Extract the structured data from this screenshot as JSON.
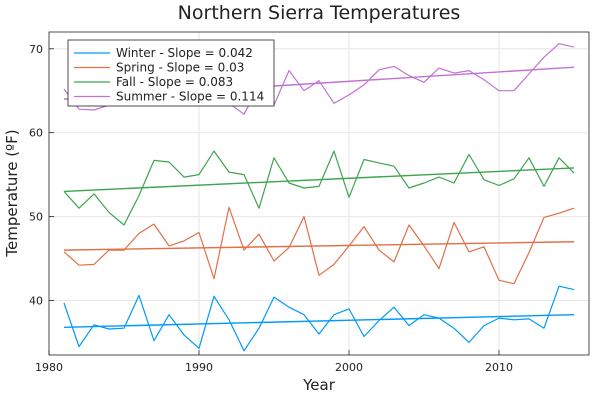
{
  "chart_data": {
    "type": "line",
    "title": "Northern Sierra Temperatures",
    "xlabel": "Year",
    "ylabel": "Temperature (ºF)",
    "xlim": [
      1980,
      2016
    ],
    "ylim": [
      33.5,
      72
    ],
    "xticks": [
      1980,
      1990,
      2000,
      2010
    ],
    "yticks": [
      40,
      50,
      60,
      70
    ],
    "grid": true,
    "legend_position": "top-left",
    "x": [
      1981,
      1982,
      1983,
      1984,
      1985,
      1986,
      1987,
      1988,
      1989,
      1990,
      1991,
      1992,
      1993,
      1994,
      1995,
      1996,
      1997,
      1998,
      1999,
      2000,
      2001,
      2002,
      2003,
      2004,
      2005,
      2006,
      2007,
      2008,
      2009,
      2010,
      2011,
      2012,
      2013,
      2014,
      2015
    ],
    "series": [
      {
        "name": "Winter - Slope = 0.042",
        "color": "#009af9",
        "values": [
          39.7,
          34.5,
          37.1,
          36.6,
          36.7,
          40.6,
          35.2,
          38.3,
          35.9,
          34.3,
          40.5,
          37.7,
          34.0,
          36.7,
          40.4,
          39.2,
          38.3,
          36.0,
          38.3,
          39.0,
          35.7,
          37.6,
          39.2,
          37.0,
          38.3,
          37.9,
          36.7,
          35.0,
          37.0,
          37.9,
          37.7,
          37.8,
          36.7,
          41.7,
          41.3
        ],
        "trend": [
          36.8,
          38.3
        ]
      },
      {
        "name": "Spring - Slope = 0.03",
        "color": "#e26f46",
        "values": [
          45.8,
          44.2,
          44.3,
          46.0,
          46.0,
          48.0,
          49.1,
          46.5,
          47.1,
          48.1,
          42.6,
          51.1,
          46.0,
          47.9,
          44.7,
          46.3,
          50.0,
          43.0,
          44.3,
          46.5,
          48.8,
          46.0,
          44.6,
          49.0,
          46.5,
          43.8,
          49.3,
          45.8,
          46.4,
          42.4,
          42.0,
          45.7,
          49.9,
          50.4,
          51.0
        ],
        "trend": [
          46.0,
          47.0
        ]
      },
      {
        "name": "Fall - Slope = 0.083",
        "color": "#3da44d",
        "values": [
          53.0,
          51.0,
          52.7,
          50.5,
          49.0,
          52.5,
          56.7,
          56.5,
          54.7,
          55.0,
          57.8,
          55.3,
          55.0,
          51.0,
          57.0,
          54.0,
          53.4,
          53.6,
          57.8,
          52.3,
          56.8,
          56.4,
          56.0,
          53.4,
          54.0,
          54.7,
          54.0,
          57.4,
          54.4,
          53.7,
          54.5,
          57.0,
          53.6,
          57.0,
          55.2
        ],
        "trend": [
          53.0,
          55.8
        ]
      },
      {
        "name": "Summer - Slope = 0.114",
        "color": "#c271d2",
        "values": [
          65.2,
          62.8,
          62.7,
          63.3,
          66.0,
          66.5,
          66.3,
          64.6,
          64.0,
          64.5,
          63.8,
          63.5,
          62.2,
          65.5,
          63.3,
          67.4,
          65.0,
          66.2,
          63.5,
          64.5,
          65.7,
          67.5,
          67.9,
          66.8,
          66.0,
          67.7,
          67.1,
          67.4,
          66.3,
          65.0,
          65.0,
          67.0,
          69.0,
          70.6,
          70.2
        ],
        "trend": [
          64.0,
          67.8
        ]
      }
    ]
  }
}
